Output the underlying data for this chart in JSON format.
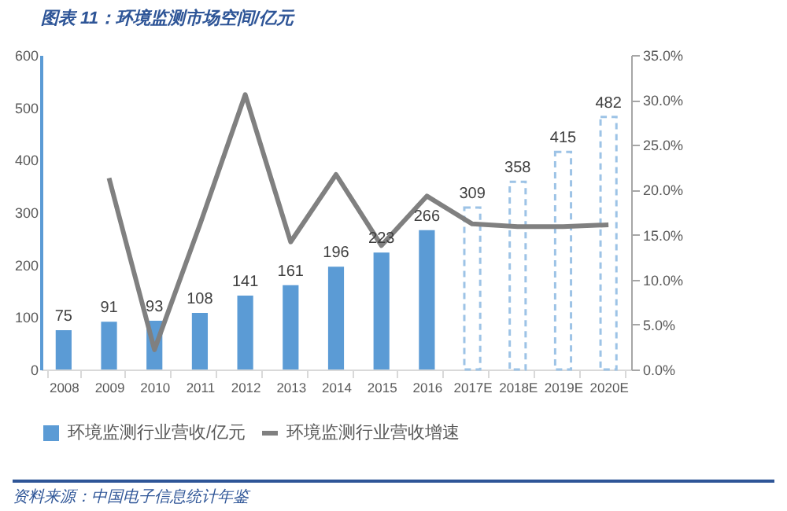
{
  "chart_data": {
    "type": "bar",
    "title": "图表 11：环境监测市场空间/亿元",
    "categories": [
      "2008",
      "2009",
      "2010",
      "2011",
      "2012",
      "2013",
      "2014",
      "2015",
      "2016",
      "2017E",
      "2018E",
      "2019E",
      "2020E"
    ],
    "series": [
      {
        "name": "环境监测行业营收/亿元",
        "color": "#5b9bd5",
        "values": [
          75,
          91,
          93,
          108,
          141,
          161,
          196,
          223,
          266,
          null,
          null,
          null,
          null
        ],
        "value_labels": [
          "75",
          "91",
          "93",
          "108",
          "141",
          "161",
          "196",
          "223",
          "266",
          null,
          null,
          null,
          null
        ]
      },
      {
        "color": "#9dc3e6",
        "line_style": "dashed",
        "values": [
          null,
          null,
          null,
          null,
          null,
          null,
          null,
          null,
          null,
          309,
          358,
          415,
          482
        ],
        "value_labels": [
          null,
          null,
          null,
          null,
          null,
          null,
          null,
          null,
          null,
          "309",
          "358",
          "415",
          "482"
        ]
      },
      {
        "name": "环境监测行业营收增速",
        "type": "line",
        "axis": "y2",
        "color": "#808080",
        "values": [
          null,
          21.3,
          2.2,
          16.1,
          30.6,
          14.2,
          21.7,
          13.8,
          19.3,
          16.2,
          15.9,
          15.9,
          16.1
        ]
      }
    ],
    "ylim": [
      0,
      600
    ],
    "yticks": [
      0,
      100,
      200,
      300,
      400,
      500,
      600
    ],
    "y2lim": [
      0,
      35
    ],
    "y2ticks": [
      {
        "value": 0,
        "label": "0.0%"
      },
      {
        "value": 5,
        "label": "5.0%"
      },
      {
        "value": 10,
        "label": "10.0%"
      },
      {
        "value": 15,
        "label": "15.0%"
      },
      {
        "value": 20,
        "label": "20.0%"
      },
      {
        "value": 25,
        "label": "25.0%"
      },
      {
        "value": 30,
        "label": "30.0%"
      },
      {
        "value": 35,
        "label": "35.0%"
      }
    ],
    "legend": "bottom",
    "annotations": [
      "资料来源：中国电子信息统计年鉴"
    ]
  }
}
